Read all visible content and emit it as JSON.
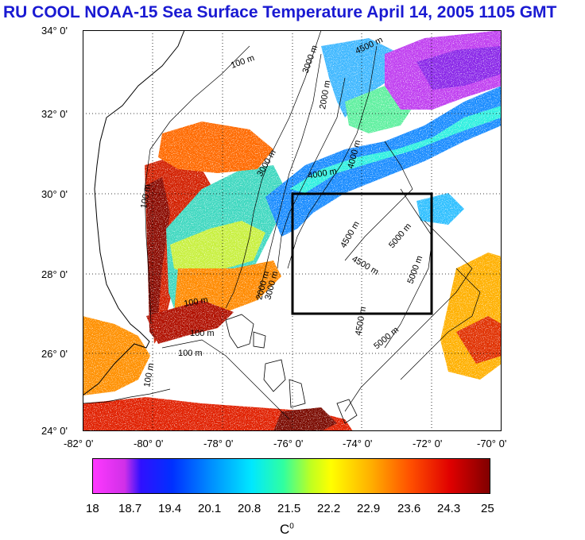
{
  "title": "RU COOL  NOAA-15 Sea Surface Temperature April 14, 2005 1105 GMT",
  "map": {
    "lat_labels": [
      "34° 0'",
      "32° 0'",
      "30° 0'",
      "28° 0'",
      "26° 0'",
      "24° 0'"
    ],
    "lon_labels": [
      "-82° 0'",
      "-80° 0'",
      "-78° 0'",
      "-76° 0'",
      "-74° 0'",
      "-72° 0'",
      "-70° 0'"
    ],
    "lat_range": [
      24,
      34
    ],
    "lon_range": [
      -82,
      -70
    ],
    "study_box": {
      "lon": [
        -76,
        -72
      ],
      "lat": [
        27,
        30
      ]
    },
    "isobath_labels": [
      "100 m",
      "100 m",
      "100 m",
      "100 m",
      "100 m",
      "100 m",
      "2000 m",
      "2000 m",
      "3000 m",
      "3000 m",
      "3000 m",
      "4000 m",
      "4000 m",
      "4500 m",
      "4500 m",
      "4500 m",
      "4500 m",
      "5000 m",
      "5000 m",
      "5000 m"
    ],
    "colors": {
      "coast": "#000000",
      "isobath": "#000000",
      "grid": "#000000"
    }
  },
  "colorbar": {
    "ticks": [
      "18",
      "18.7",
      "19.4",
      "20.1",
      "20.8",
      "21.5",
      "22.2",
      "22.9",
      "23.6",
      "24.3",
      "25"
    ],
    "range": [
      18,
      25
    ],
    "unit_base": "C",
    "unit_sup": "0"
  }
}
